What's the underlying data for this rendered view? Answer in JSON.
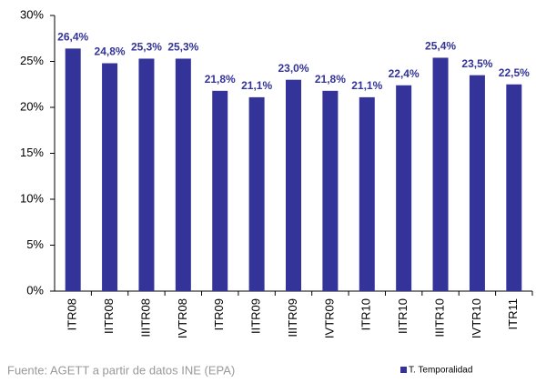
{
  "chart_data": {
    "type": "bar",
    "categories": [
      "ITR08",
      "IITR08",
      "IIITR08",
      "IVTR08",
      "ITR09",
      "IITR09",
      "IIITR09",
      "IVTR09",
      "ITR10",
      "IITR10",
      "IIITR10",
      "IVTR10",
      "ITR11"
    ],
    "series": [
      {
        "name": "T. Temporalidad",
        "color": "#333399",
        "values": [
          26.4,
          24.8,
          25.3,
          25.3,
          21.8,
          21.1,
          23.0,
          21.8,
          21.1,
          22.4,
          25.4,
          23.5,
          22.5
        ],
        "value_labels": [
          "26,4%",
          "24,8%",
          "25,3%",
          "25,3%",
          "21,8%",
          "21,1%",
          "23,0%",
          "21,8%",
          "21,1%",
          "22,4%",
          "25,4%",
          "23,5%",
          "22,5%"
        ]
      }
    ],
    "ylim": [
      0,
      30
    ],
    "yticks": [
      {
        "value": 0,
        "label": "0%"
      },
      {
        "value": 5,
        "label": "5%"
      },
      {
        "value": 10,
        "label": "10%"
      },
      {
        "value": 15,
        "label": "15%"
      },
      {
        "value": 20,
        "label": "20%"
      },
      {
        "value": 25,
        "label": "25%"
      },
      {
        "value": 30,
        "label": "30%"
      }
    ],
    "legend": "bottom-right",
    "source": "Fuente: AGETT a partir de datos INE (EPA)"
  }
}
